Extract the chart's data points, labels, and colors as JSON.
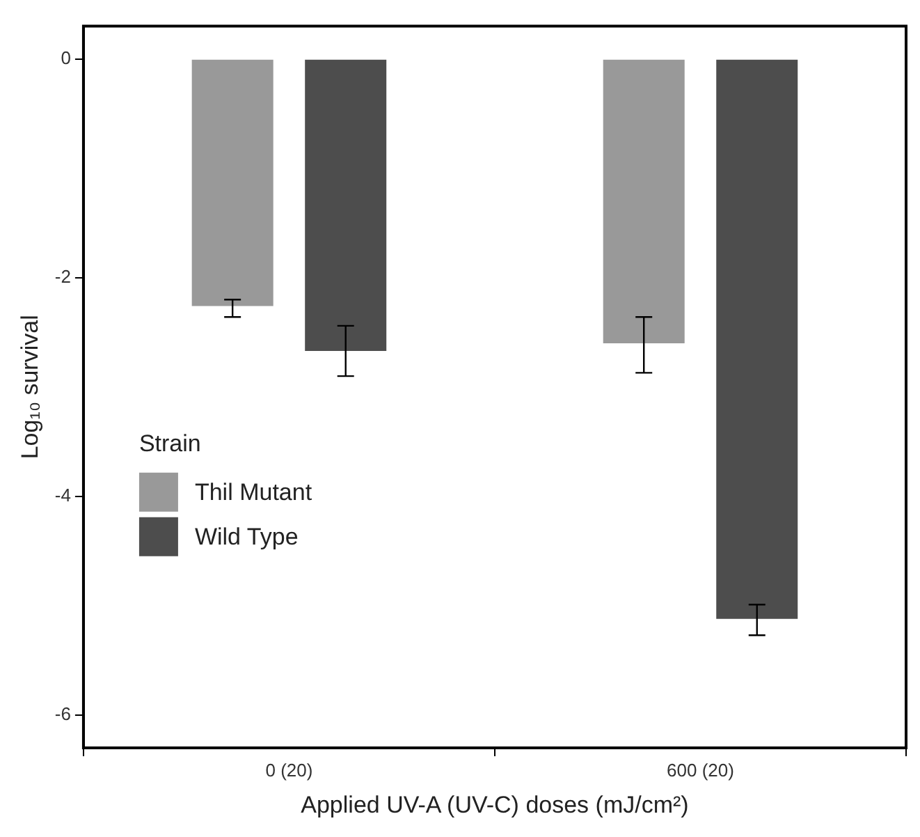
{
  "chart_data": {
    "type": "bar",
    "xlabel": "Applied UV-A (UV-C) doses (mJ/cm²)",
    "ylabel": "Log₁₀ survival",
    "legend_title": "Strain",
    "categories": [
      "0 (20)",
      "600 (20)"
    ],
    "series": [
      {
        "name": "Thil Mutant",
        "color": "#999999",
        "values": [
          -2.26,
          -2.6
        ],
        "errors": [
          [
            -2.36,
            -2.2
          ],
          [
            -2.87,
            -2.36
          ]
        ]
      },
      {
        "name": "Wild Type",
        "color": "#4d4d4d",
        "values": [
          -2.67,
          -5.12
        ],
        "errors": [
          [
            -2.9,
            -2.44
          ],
          [
            -5.27,
            -4.99
          ]
        ]
      }
    ],
    "ylim": [
      -6.3,
      0.3
    ],
    "yticks": [
      -6,
      -4,
      -2,
      0
    ],
    "grid": false,
    "legend": "left"
  }
}
